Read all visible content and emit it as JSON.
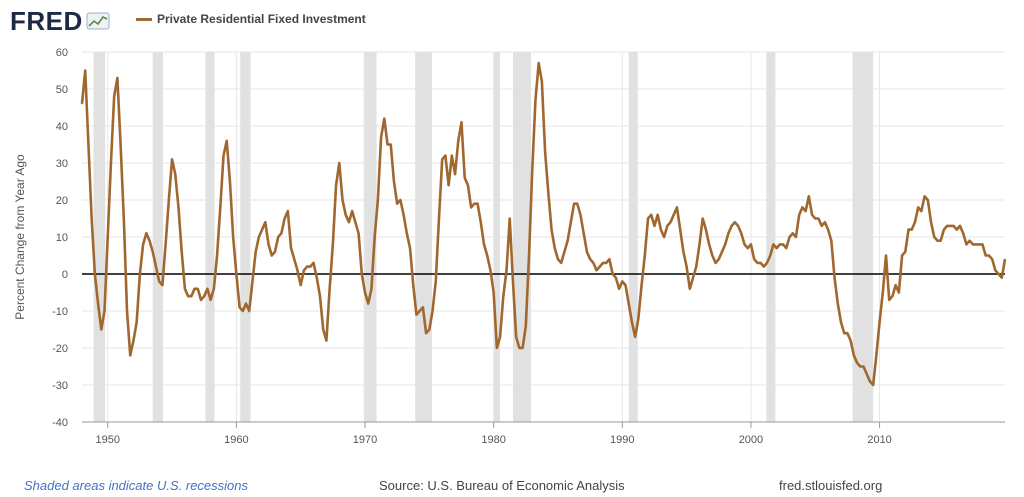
{
  "header": {
    "logo_text": "FRED",
    "series_label": "Private Residential Fixed Investment"
  },
  "footer": {
    "recession_note": "Shaded areas indicate U.S. recessions",
    "source": "Source: U.S. Bureau of Economic Analysis",
    "url": "fred.stlouisfed.org"
  },
  "colors": {
    "line": "#a0682e",
    "recession": "#e1e1e1",
    "grid": "#e6e6e6",
    "zero_line": "#000000",
    "logo": "#1d2a44"
  },
  "chart_data": {
    "type": "line",
    "title": "",
    "xlabel": "",
    "ylabel": "Percent Change from Year Ago",
    "xlim": [
      1948,
      2019.75
    ],
    "ylim": [
      -40,
      60
    ],
    "yticks": [
      -40,
      -30,
      -20,
      -10,
      0,
      10,
      20,
      30,
      40,
      50,
      60
    ],
    "xticks": [
      1950,
      1960,
      1970,
      1980,
      1990,
      2000,
      2010
    ],
    "grid": true,
    "legend_position": "top-left",
    "recessions": [
      [
        1948.9,
        1949.8
      ],
      [
        1953.5,
        1954.3
      ],
      [
        1957.6,
        1958.3
      ],
      [
        1960.3,
        1961.1
      ],
      [
        1969.9,
        1970.9
      ],
      [
        1973.9,
        1975.2
      ],
      [
        1980.0,
        1980.5
      ],
      [
        1981.5,
        1982.9
      ],
      [
        1990.5,
        1991.2
      ],
      [
        2001.2,
        2001.9
      ],
      [
        2007.9,
        2009.5
      ]
    ],
    "series": [
      {
        "name": "Private Residential Fixed Investment",
        "points": [
          [
            1948.0,
            46
          ],
          [
            1948.25,
            55
          ],
          [
            1948.5,
            35
          ],
          [
            1948.75,
            15
          ],
          [
            1949.0,
            0
          ],
          [
            1949.25,
            -8
          ],
          [
            1949.5,
            -15
          ],
          [
            1949.75,
            -10
          ],
          [
            1950.0,
            10
          ],
          [
            1950.25,
            30
          ],
          [
            1950.5,
            48
          ],
          [
            1950.75,
            53
          ],
          [
            1951.0,
            35
          ],
          [
            1951.25,
            15
          ],
          [
            1951.5,
            -10
          ],
          [
            1951.75,
            -22
          ],
          [
            1952.0,
            -18
          ],
          [
            1952.25,
            -13
          ],
          [
            1952.5,
            0
          ],
          [
            1952.75,
            8
          ],
          [
            1953.0,
            11
          ],
          [
            1953.25,
            9
          ],
          [
            1953.5,
            6
          ],
          [
            1953.75,
            2
          ],
          [
            1954.0,
            -2
          ],
          [
            1954.25,
            -3
          ],
          [
            1954.5,
            8
          ],
          [
            1954.75,
            20
          ],
          [
            1955.0,
            31
          ],
          [
            1955.25,
            27
          ],
          [
            1955.5,
            18
          ],
          [
            1955.75,
            6
          ],
          [
            1956.0,
            -4
          ],
          [
            1956.25,
            -6
          ],
          [
            1956.5,
            -6
          ],
          [
            1956.75,
            -4
          ],
          [
            1957.0,
            -4
          ],
          [
            1957.25,
            -7
          ],
          [
            1957.5,
            -6
          ],
          [
            1957.75,
            -4
          ],
          [
            1958.0,
            -7
          ],
          [
            1958.25,
            -4
          ],
          [
            1958.5,
            5
          ],
          [
            1958.75,
            18
          ],
          [
            1959.0,
            32
          ],
          [
            1959.25,
            36
          ],
          [
            1959.5,
            25
          ],
          [
            1959.75,
            10
          ],
          [
            1960.0,
            0
          ],
          [
            1960.25,
            -9
          ],
          [
            1960.5,
            -10
          ],
          [
            1960.75,
            -8
          ],
          [
            1961.0,
            -10
          ],
          [
            1961.25,
            -2
          ],
          [
            1961.5,
            6
          ],
          [
            1961.75,
            10
          ],
          [
            1962.0,
            12
          ],
          [
            1962.25,
            14
          ],
          [
            1962.5,
            8
          ],
          [
            1962.75,
            5
          ],
          [
            1963.0,
            6
          ],
          [
            1963.25,
            10
          ],
          [
            1963.5,
            11
          ],
          [
            1963.75,
            15
          ],
          [
            1964.0,
            17
          ],
          [
            1964.25,
            7
          ],
          [
            1964.5,
            4
          ],
          [
            1964.75,
            1
          ],
          [
            1965.0,
            -3
          ],
          [
            1965.25,
            1
          ],
          [
            1965.5,
            2
          ],
          [
            1965.75,
            2
          ],
          [
            1966.0,
            3
          ],
          [
            1966.25,
            -1
          ],
          [
            1966.5,
            -6
          ],
          [
            1966.75,
            -15
          ],
          [
            1967.0,
            -18
          ],
          [
            1967.25,
            -4
          ],
          [
            1967.5,
            8
          ],
          [
            1967.75,
            24
          ],
          [
            1968.0,
            30
          ],
          [
            1968.25,
            20
          ],
          [
            1968.5,
            16
          ],
          [
            1968.75,
            14
          ],
          [
            1969.0,
            17
          ],
          [
            1969.25,
            14
          ],
          [
            1969.5,
            11
          ],
          [
            1969.75,
            0
          ],
          [
            1970.0,
            -5
          ],
          [
            1970.25,
            -8
          ],
          [
            1970.5,
            -4
          ],
          [
            1970.75,
            10
          ],
          [
            1971.0,
            20
          ],
          [
            1971.25,
            37
          ],
          [
            1971.5,
            42
          ],
          [
            1971.75,
            35
          ],
          [
            1972.0,
            35
          ],
          [
            1972.25,
            25
          ],
          [
            1972.5,
            19
          ],
          [
            1972.75,
            20
          ],
          [
            1973.0,
            16
          ],
          [
            1973.25,
            11
          ],
          [
            1973.5,
            7
          ],
          [
            1973.75,
            -3
          ],
          [
            1974.0,
            -11
          ],
          [
            1974.25,
            -10
          ],
          [
            1974.5,
            -9
          ],
          [
            1974.75,
            -16
          ],
          [
            1975.0,
            -15
          ],
          [
            1975.25,
            -10
          ],
          [
            1975.5,
            -2
          ],
          [
            1975.75,
            15
          ],
          [
            1976.0,
            31
          ],
          [
            1976.25,
            32
          ],
          [
            1976.5,
            24
          ],
          [
            1976.75,
            32
          ],
          [
            1977.0,
            27
          ],
          [
            1977.25,
            36
          ],
          [
            1977.5,
            41
          ],
          [
            1977.75,
            26
          ],
          [
            1978.0,
            24
          ],
          [
            1978.25,
            18
          ],
          [
            1978.5,
            19
          ],
          [
            1978.75,
            19
          ],
          [
            1979.0,
            14
          ],
          [
            1979.25,
            8
          ],
          [
            1979.5,
            5
          ],
          [
            1979.75,
            1
          ],
          [
            1980.0,
            -5
          ],
          [
            1980.25,
            -20
          ],
          [
            1980.5,
            -17
          ],
          [
            1980.75,
            -6
          ],
          [
            1981.0,
            1
          ],
          [
            1981.25,
            15
          ],
          [
            1981.5,
            -2
          ],
          [
            1981.75,
            -17
          ],
          [
            1982.0,
            -20
          ],
          [
            1982.25,
            -20
          ],
          [
            1982.5,
            -14
          ],
          [
            1982.75,
            5
          ],
          [
            1983.0,
            28
          ],
          [
            1983.25,
            47
          ],
          [
            1983.5,
            57
          ],
          [
            1983.75,
            52
          ],
          [
            1984.0,
            33
          ],
          [
            1984.25,
            22
          ],
          [
            1984.5,
            12
          ],
          [
            1984.75,
            7
          ],
          [
            1985.0,
            4
          ],
          [
            1985.25,
            3
          ],
          [
            1985.5,
            6
          ],
          [
            1985.75,
            9
          ],
          [
            1986.0,
            14
          ],
          [
            1986.25,
            19
          ],
          [
            1986.5,
            19
          ],
          [
            1986.75,
            16
          ],
          [
            1987.0,
            11
          ],
          [
            1987.25,
            6
          ],
          [
            1987.5,
            4
          ],
          [
            1987.75,
            3
          ],
          [
            1988.0,
            1
          ],
          [
            1988.25,
            2
          ],
          [
            1988.5,
            3
          ],
          [
            1988.75,
            3
          ],
          [
            1989.0,
            4
          ],
          [
            1989.25,
            0
          ],
          [
            1989.5,
            -1
          ],
          [
            1989.75,
            -4
          ],
          [
            1990.0,
            -2
          ],
          [
            1990.25,
            -3
          ],
          [
            1990.5,
            -8
          ],
          [
            1990.75,
            -13
          ],
          [
            1991.0,
            -17
          ],
          [
            1991.25,
            -12
          ],
          [
            1991.5,
            -3
          ],
          [
            1991.75,
            5
          ],
          [
            1992.0,
            15
          ],
          [
            1992.25,
            16
          ],
          [
            1992.5,
            13
          ],
          [
            1992.75,
            16
          ],
          [
            1993.0,
            12
          ],
          [
            1993.25,
            10
          ],
          [
            1993.5,
            13
          ],
          [
            1993.75,
            14
          ],
          [
            1994.0,
            16
          ],
          [
            1994.25,
            18
          ],
          [
            1994.5,
            12
          ],
          [
            1994.75,
            6
          ],
          [
            1995.0,
            2
          ],
          [
            1995.25,
            -4
          ],
          [
            1995.5,
            -1
          ],
          [
            1995.75,
            2
          ],
          [
            1996.0,
            8
          ],
          [
            1996.25,
            15
          ],
          [
            1996.5,
            12
          ],
          [
            1996.75,
            8
          ],
          [
            1997.0,
            5
          ],
          [
            1997.25,
            3
          ],
          [
            1997.5,
            4
          ],
          [
            1997.75,
            6
          ],
          [
            1998.0,
            8
          ],
          [
            1998.25,
            11
          ],
          [
            1998.5,
            13
          ],
          [
            1998.75,
            14
          ],
          [
            1999.0,
            13
          ],
          [
            1999.25,
            11
          ],
          [
            1999.5,
            8
          ],
          [
            1999.75,
            7
          ],
          [
            2000.0,
            8
          ],
          [
            2000.25,
            4
          ],
          [
            2000.5,
            3
          ],
          [
            2000.75,
            3
          ],
          [
            2001.0,
            2
          ],
          [
            2001.25,
            3
          ],
          [
            2001.5,
            5
          ],
          [
            2001.75,
            8
          ],
          [
            2002.0,
            7
          ],
          [
            2002.25,
            8
          ],
          [
            2002.5,
            8
          ],
          [
            2002.75,
            7
          ],
          [
            2003.0,
            10
          ],
          [
            2003.25,
            11
          ],
          [
            2003.5,
            10
          ],
          [
            2003.75,
            16
          ],
          [
            2004.0,
            18
          ],
          [
            2004.25,
            17
          ],
          [
            2004.5,
            21
          ],
          [
            2004.75,
            16
          ],
          [
            2005.0,
            15
          ],
          [
            2005.25,
            15
          ],
          [
            2005.5,
            13
          ],
          [
            2005.75,
            14
          ],
          [
            2006.0,
            12
          ],
          [
            2006.25,
            9
          ],
          [
            2006.5,
            -1
          ],
          [
            2006.75,
            -8
          ],
          [
            2007.0,
            -13
          ],
          [
            2007.25,
            -16
          ],
          [
            2007.5,
            -16
          ],
          [
            2007.75,
            -18
          ],
          [
            2008.0,
            -22
          ],
          [
            2008.25,
            -24
          ],
          [
            2008.5,
            -25
          ],
          [
            2008.75,
            -25
          ],
          [
            2009.0,
            -27
          ],
          [
            2009.25,
            -29
          ],
          [
            2009.5,
            -30
          ],
          [
            2009.75,
            -22
          ],
          [
            2010.0,
            -13
          ],
          [
            2010.25,
            -5
          ],
          [
            2010.5,
            5
          ],
          [
            2010.75,
            -7
          ],
          [
            2011.0,
            -6
          ],
          [
            2011.25,
            -3
          ],
          [
            2011.5,
            -5
          ],
          [
            2011.75,
            5
          ],
          [
            2012.0,
            6
          ],
          [
            2012.25,
            12
          ],
          [
            2012.5,
            12
          ],
          [
            2012.75,
            14
          ],
          [
            2013.0,
            18
          ],
          [
            2013.25,
            17
          ],
          [
            2013.5,
            21
          ],
          [
            2013.75,
            20
          ],
          [
            2014.0,
            14
          ],
          [
            2014.25,
            10
          ],
          [
            2014.5,
            9
          ],
          [
            2014.75,
            9
          ],
          [
            2015.0,
            12
          ],
          [
            2015.25,
            13
          ],
          [
            2015.5,
            13
          ],
          [
            2015.75,
            13
          ],
          [
            2016.0,
            12
          ],
          [
            2016.25,
            13
          ],
          [
            2016.5,
            11
          ],
          [
            2016.75,
            8
          ],
          [
            2017.0,
            9
          ],
          [
            2017.25,
            8
          ],
          [
            2017.5,
            8
          ],
          [
            2017.75,
            8
          ],
          [
            2018.0,
            8
          ],
          [
            2018.25,
            5
          ],
          [
            2018.5,
            5
          ],
          [
            2018.75,
            4
          ],
          [
            2019.0,
            1
          ],
          [
            2019.25,
            0
          ],
          [
            2019.5,
            -1
          ],
          [
            2019.75,
            4
          ]
        ]
      }
    ]
  }
}
